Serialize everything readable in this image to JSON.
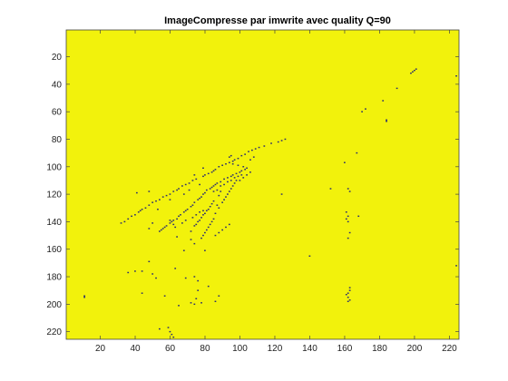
{
  "chart_data": {
    "type": "heatmap",
    "title": "ImageCompresse par imwrite avec quality Q=90",
    "xlabel": "",
    "ylabel": "",
    "xlim": [
      0.5,
      225.5
    ],
    "ylim": [
      0.5,
      225.5
    ],
    "y_reversed": true,
    "grid": false,
    "x_ticks": [
      20,
      40,
      60,
      80,
      100,
      120,
      140,
      160,
      180,
      200,
      220
    ],
    "y_ticks": [
      20,
      40,
      60,
      80,
      100,
      120,
      140,
      160,
      180,
      200,
      220
    ],
    "colors": {
      "background_value_color": "#f2f20c",
      "marker_value_color": "#2a2e6e",
      "axes_line": "#444444"
    },
    "points": [
      [
        201,
        29
      ],
      [
        200,
        30
      ],
      [
        199,
        31
      ],
      [
        198,
        32
      ],
      [
        224,
        34
      ],
      [
        190,
        43
      ],
      [
        182,
        52
      ],
      [
        172,
        58
      ],
      [
        170,
        60
      ],
      [
        184,
        66
      ],
      [
        184,
        67
      ],
      [
        167,
        90
      ],
      [
        160,
        97
      ],
      [
        152,
        116
      ],
      [
        140,
        165
      ],
      [
        224,
        172
      ],
      [
        126,
        80
      ],
      [
        124,
        81
      ],
      [
        122,
        82
      ],
      [
        118,
        83
      ],
      [
        114,
        85
      ],
      [
        111,
        86
      ],
      [
        109,
        87
      ],
      [
        107,
        88
      ],
      [
        105,
        89
      ],
      [
        103,
        91
      ],
      [
        101,
        92
      ],
      [
        99,
        94
      ],
      [
        97,
        95
      ],
      [
        96,
        96
      ],
      [
        94,
        97
      ],
      [
        92,
        98
      ],
      [
        90,
        99
      ],
      [
        88,
        100
      ],
      [
        86,
        102
      ],
      [
        85,
        103
      ],
      [
        84,
        104
      ],
      [
        82,
        105
      ],
      [
        80,
        106
      ],
      [
        79,
        107
      ],
      [
        75,
        109
      ],
      [
        73,
        110
      ],
      [
        71,
        112
      ],
      [
        69,
        113
      ],
      [
        67,
        114
      ],
      [
        65,
        116
      ],
      [
        64,
        117
      ],
      [
        62,
        118
      ],
      [
        60,
        120
      ],
      [
        58,
        121
      ],
      [
        56,
        122
      ],
      [
        54,
        124
      ],
      [
        52,
        125
      ],
      [
        50,
        126
      ],
      [
        48,
        128
      ],
      [
        46,
        130
      ],
      [
        44,
        131
      ],
      [
        43,
        132
      ],
      [
        42,
        133
      ],
      [
        40,
        135
      ],
      [
        38,
        136
      ],
      [
        36,
        138
      ],
      [
        34,
        140
      ],
      [
        32,
        141
      ],
      [
        100,
        104
      ],
      [
        98,
        105
      ],
      [
        96,
        106
      ],
      [
        95,
        107
      ],
      [
        93,
        108
      ],
      [
        91,
        109
      ],
      [
        89,
        111
      ],
      [
        87,
        112
      ],
      [
        86,
        113
      ],
      [
        85,
        114
      ],
      [
        84,
        115
      ],
      [
        83,
        116
      ],
      [
        81,
        117
      ],
      [
        80,
        119
      ],
      [
        79,
        120
      ],
      [
        78,
        122
      ],
      [
        77,
        123
      ],
      [
        76,
        124
      ],
      [
        74,
        126
      ],
      [
        73,
        128
      ],
      [
        72,
        129
      ],
      [
        70,
        131
      ],
      [
        69,
        132
      ],
      [
        68,
        133
      ],
      [
        66,
        135
      ],
      [
        65,
        136
      ],
      [
        64,
        138
      ],
      [
        62,
        139
      ],
      [
        61,
        140
      ],
      [
        60,
        141
      ],
      [
        58,
        143
      ],
      [
        57,
        144
      ],
      [
        56,
        145
      ],
      [
        55,
        146
      ],
      [
        54,
        147
      ],
      [
        95,
        92
      ],
      [
        94,
        93
      ],
      [
        99,
        99
      ],
      [
        96,
        98
      ],
      [
        102,
        100
      ],
      [
        103,
        102
      ],
      [
        101,
        103
      ],
      [
        104,
        101
      ],
      [
        106,
        95
      ],
      [
        108,
        93
      ],
      [
        85,
        125
      ],
      [
        84,
        127
      ],
      [
        83,
        129
      ],
      [
        82,
        131
      ],
      [
        81,
        132
      ],
      [
        80,
        134
      ],
      [
        79,
        135
      ],
      [
        78,
        137
      ],
      [
        77,
        139
      ],
      [
        76,
        140
      ],
      [
        75,
        142
      ],
      [
        74,
        143
      ],
      [
        87,
        128
      ],
      [
        88,
        130
      ],
      [
        86,
        134
      ],
      [
        85,
        138
      ],
      [
        84,
        140
      ],
      [
        83,
        142
      ],
      [
        82,
        144
      ],
      [
        81,
        146
      ],
      [
        80,
        148
      ],
      [
        79,
        150
      ],
      [
        78,
        152
      ],
      [
        90,
        126
      ],
      [
        91,
        124
      ],
      [
        92,
        122
      ],
      [
        93,
        120
      ],
      [
        94,
        118
      ],
      [
        95,
        116
      ],
      [
        96,
        114
      ],
      [
        97,
        112
      ],
      [
        98,
        110
      ],
      [
        88,
        121
      ],
      [
        89,
        118
      ],
      [
        74,
        106
      ],
      [
        79,
        101
      ],
      [
        77,
        113
      ],
      [
        71,
        117
      ],
      [
        68,
        120
      ],
      [
        60,
        124
      ],
      [
        53,
        131
      ],
      [
        50,
        141
      ],
      [
        63,
        144
      ],
      [
        64,
        151
      ],
      [
        72,
        153
      ],
      [
        60,
        139
      ],
      [
        62,
        142
      ],
      [
        67,
        141
      ],
      [
        69,
        139
      ],
      [
        73,
        137
      ],
      [
        75,
        135
      ],
      [
        77,
        133
      ],
      [
        79,
        132
      ],
      [
        85,
        118
      ],
      [
        87,
        117
      ],
      [
        89,
        114
      ],
      [
        91,
        113
      ],
      [
        93,
        111
      ],
      [
        95,
        110
      ],
      [
        97,
        108
      ],
      [
        99,
        107
      ],
      [
        101,
        106
      ],
      [
        106,
        104
      ],
      [
        104,
        106
      ],
      [
        102,
        108
      ],
      [
        100,
        110
      ],
      [
        124,
        120
      ],
      [
        162,
        116
      ],
      [
        163,
        118
      ],
      [
        161,
        133
      ],
      [
        162,
        136
      ],
      [
        161,
        138
      ],
      [
        162,
        140
      ],
      [
        168,
        136
      ],
      [
        163,
        148
      ],
      [
        162,
        152
      ],
      [
        41,
        119
      ],
      [
        48,
        118
      ],
      [
        48,
        145
      ],
      [
        72,
        147
      ],
      [
        74,
        156
      ],
      [
        68,
        161
      ],
      [
        80,
        161
      ],
      [
        86,
        150
      ],
      [
        88,
        148
      ],
      [
        90,
        146
      ],
      [
        92,
        144
      ],
      [
        94,
        142
      ],
      [
        40,
        176
      ],
      [
        44,
        176
      ],
      [
        36,
        177
      ],
      [
        50,
        178
      ],
      [
        52,
        181
      ],
      [
        48,
        169
      ],
      [
        44,
        192
      ],
      [
        69,
        181
      ],
      [
        74,
        180
      ],
      [
        76,
        183
      ],
      [
        82,
        187
      ],
      [
        76,
        190
      ],
      [
        75,
        196
      ],
      [
        78,
        199
      ],
      [
        74,
        200
      ],
      [
        88,
        194
      ],
      [
        86,
        198
      ],
      [
        72,
        199
      ],
      [
        65,
        201
      ],
      [
        63,
        174
      ],
      [
        57,
        194
      ],
      [
        11,
        194
      ],
      [
        11,
        195
      ],
      [
        54,
        218
      ],
      [
        59,
        217
      ],
      [
        60,
        220
      ],
      [
        61,
        222
      ],
      [
        62,
        224
      ],
      [
        163,
        188
      ],
      [
        163,
        190
      ],
      [
        162,
        192
      ],
      [
        161,
        193
      ],
      [
        162,
        195
      ],
      [
        163,
        197
      ],
      [
        162,
        198
      ]
    ]
  }
}
